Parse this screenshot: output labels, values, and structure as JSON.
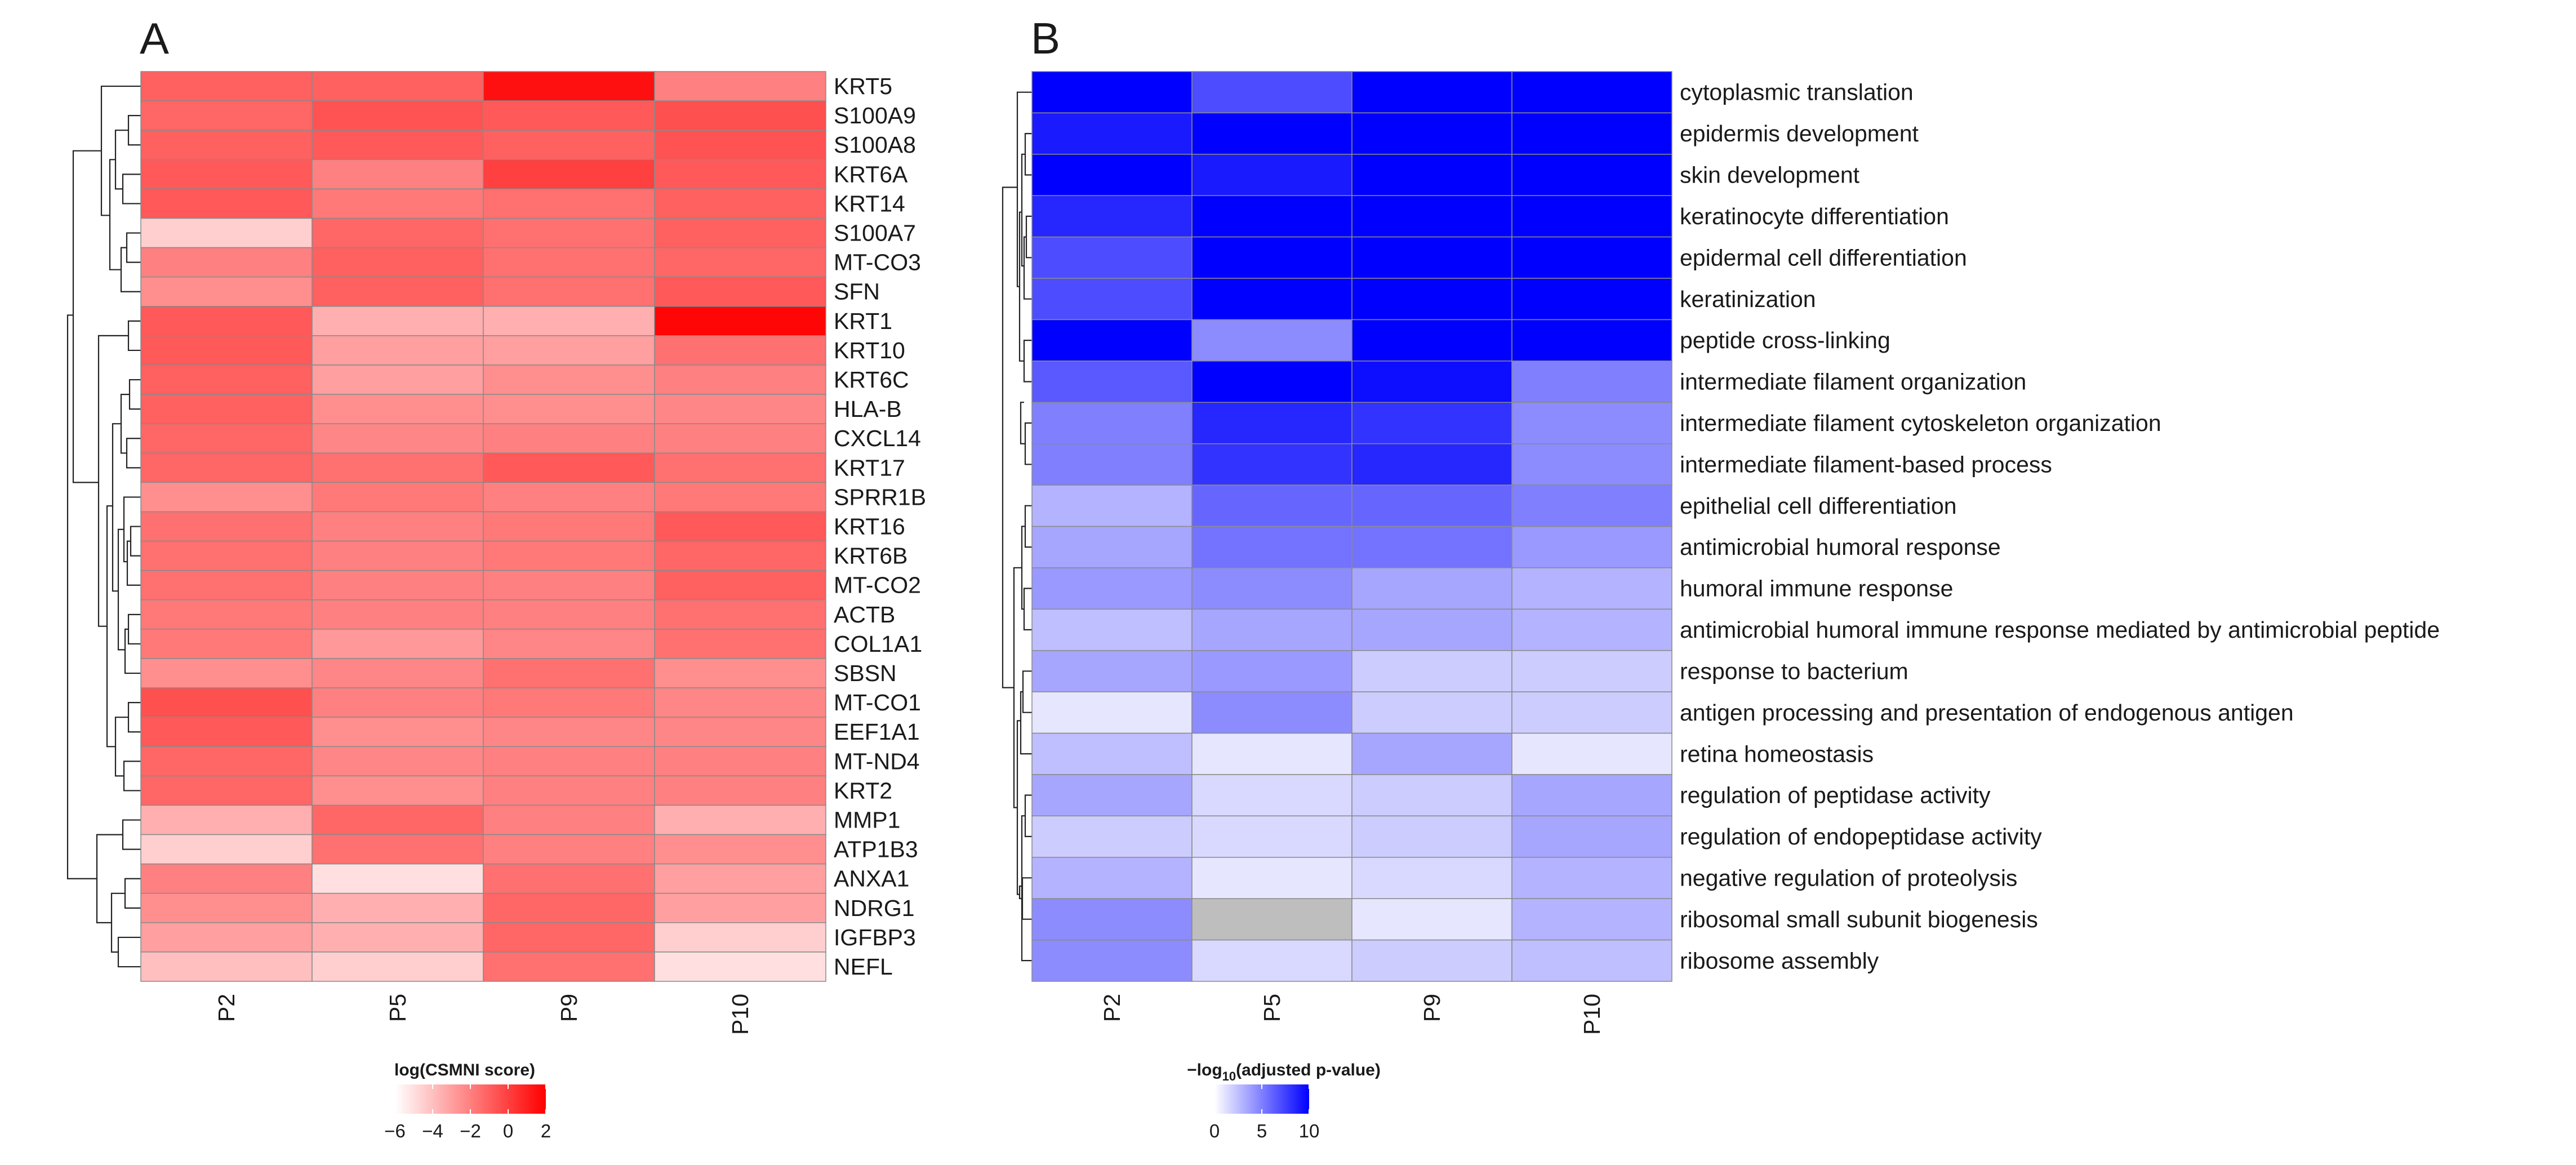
{
  "chart_data": [
    {
      "type": "heatmap",
      "panel_label": "A",
      "columns": [
        "P2",
        "P5",
        "P9",
        "P10"
      ],
      "rows": [
        "KRT5",
        "S100A9",
        "S100A8",
        "KRT6A",
        "KRT14",
        "S100A7",
        "MT-CO3",
        "SFN",
        "KRT1",
        "KRT10",
        "KRT6C",
        "HLA-B",
        "CXCL14",
        "KRT17",
        "SPRR1B",
        "KRT16",
        "KRT6B",
        "MT-CO2",
        "ACTB",
        "COL1A1",
        "SBSN",
        "MT-CO1",
        "EEF1A1",
        "MT-ND4",
        "KRT2",
        "MMP1",
        "ATP1B3",
        "ANXA1",
        "NDRG1",
        "IGFBP3",
        "NEFL"
      ],
      "values": [
        [
          -1.0,
          -1.0,
          1.5,
          -2.0
        ],
        [
          -1.2,
          -0.6,
          -0.8,
          -0.5
        ],
        [
          -1.0,
          -0.8,
          -1.0,
          -0.6
        ],
        [
          -0.8,
          -2.0,
          0.0,
          -0.8
        ],
        [
          -0.8,
          -1.8,
          -1.5,
          -1.0
        ],
        [
          -4.5,
          -1.2,
          -1.5,
          -1.0
        ],
        [
          -2.0,
          -1.0,
          -1.5,
          -1.2
        ],
        [
          -2.5,
          -1.0,
          -1.5,
          -0.8
        ],
        [
          -0.8,
          -3.5,
          -3.5,
          1.8
        ],
        [
          -0.8,
          -3.0,
          -3.0,
          -1.5
        ],
        [
          -1.0,
          -3.0,
          -2.5,
          -2.0
        ],
        [
          -1.0,
          -2.5,
          -2.5,
          -2.2
        ],
        [
          -1.2,
          -2.2,
          -2.0,
          -2.0
        ],
        [
          -1.2,
          -1.5,
          -0.8,
          -1.5
        ],
        [
          -2.5,
          -1.8,
          -2.0,
          -1.8
        ],
        [
          -1.5,
          -2.0,
          -1.8,
          -0.8
        ],
        [
          -1.5,
          -2.0,
          -1.8,
          -1.2
        ],
        [
          -1.5,
          -2.0,
          -2.0,
          -1.0
        ],
        [
          -1.8,
          -2.0,
          -2.0,
          -1.5
        ],
        [
          -1.8,
          -2.8,
          -2.2,
          -1.5
        ],
        [
          -2.5,
          -2.2,
          -1.5,
          -2.5
        ],
        [
          -0.5,
          -2.0,
          -1.8,
          -2.2
        ],
        [
          -0.8,
          -2.5,
          -2.2,
          -2.2
        ],
        [
          -1.2,
          -2.2,
          -2.0,
          -2.0
        ],
        [
          -1.2,
          -2.5,
          -2.0,
          -2.0
        ],
        [
          -3.5,
          -1.2,
          -2.0,
          -3.5
        ],
        [
          -4.5,
          -1.5,
          -2.0,
          -2.5
        ],
        [
          -2.0,
          -5.0,
          -1.5,
          -3.0
        ],
        [
          -2.5,
          -3.5,
          -1.2,
          -3.0
        ],
        [
          -3.0,
          -3.5,
          -1.2,
          -4.5
        ],
        [
          -4.0,
          -4.5,
          -1.5,
          -5.0
        ]
      ],
      "colorbar": {
        "title": "log(CSMNI score)",
        "ticks": [
          "−6",
          "−4",
          "−2",
          "0",
          "2"
        ],
        "range": [
          -6,
          2
        ],
        "low_color": "#ffffff",
        "high_color": "#ff0000"
      }
    },
    {
      "type": "heatmap",
      "panel_label": "B",
      "columns": [
        "P2",
        "P5",
        "P9",
        "P10"
      ],
      "rows": [
        "cytoplasmic translation",
        "epidermis development",
        "skin development",
        "keratinocyte differentiation",
        "epidermal cell differentiation",
        "keratinization",
        "peptide cross-linking",
        "intermediate filament organization",
        "intermediate filament cytoskeleton organization",
        "intermediate filament-based process",
        "epithelial cell differentiation",
        "antimicrobial humoral response",
        "humoral immune response",
        "antimicrobial humoral immune response mediated by antimicrobial peptide",
        "response to bacterium",
        "antigen processing and presentation of endogenous antigen",
        "retina homeostasis",
        "regulation of peptidase activity",
        "regulation of endopeptidase activity",
        "negative regulation of proteolysis",
        "ribosomal small subunit biogenesis",
        "ribosome assembly"
      ],
      "values": [
        [
          12,
          7,
          12,
          12
        ],
        [
          9,
          12,
          12,
          12
        ],
        [
          11,
          9,
          12,
          12
        ],
        [
          8.5,
          12,
          12,
          12
        ],
        [
          7,
          12,
          12,
          12
        ],
        [
          7,
          12,
          12,
          12
        ],
        [
          11,
          4.5,
          12,
          12
        ],
        [
          6.5,
          12,
          9.5,
          5
        ],
        [
          5,
          8.5,
          8,
          4.5
        ],
        [
          5,
          8,
          8.5,
          4.5
        ],
        [
          3,
          6,
          6,
          5
        ],
        [
          3.5,
          5.5,
          5.5,
          4
        ],
        [
          4,
          4.5,
          3.5,
          3
        ],
        [
          2.5,
          3.5,
          3.5,
          3
        ],
        [
          3.5,
          4,
          2,
          2
        ],
        [
          1,
          4.5,
          2,
          2
        ],
        [
          2.5,
          1,
          3.5,
          1
        ],
        [
          3.5,
          1.5,
          2,
          3.5
        ],
        [
          2,
          1.5,
          2,
          3.5
        ],
        [
          3,
          1,
          1.5,
          3
        ],
        [
          4.5,
          null,
          1,
          3
        ],
        [
          4.5,
          1.5,
          2,
          2.5
        ]
      ],
      "colorbar": {
        "title_prefix": "−log",
        "title_sub": "10",
        "title_suffix": "(adjusted p-value)",
        "ticks": [
          "0",
          "5",
          "10"
        ],
        "range": [
          0,
          10
        ],
        "low_color": "#ffffff",
        "high_color": "#0000ff",
        "na_color": "#bebebe"
      }
    }
  ]
}
